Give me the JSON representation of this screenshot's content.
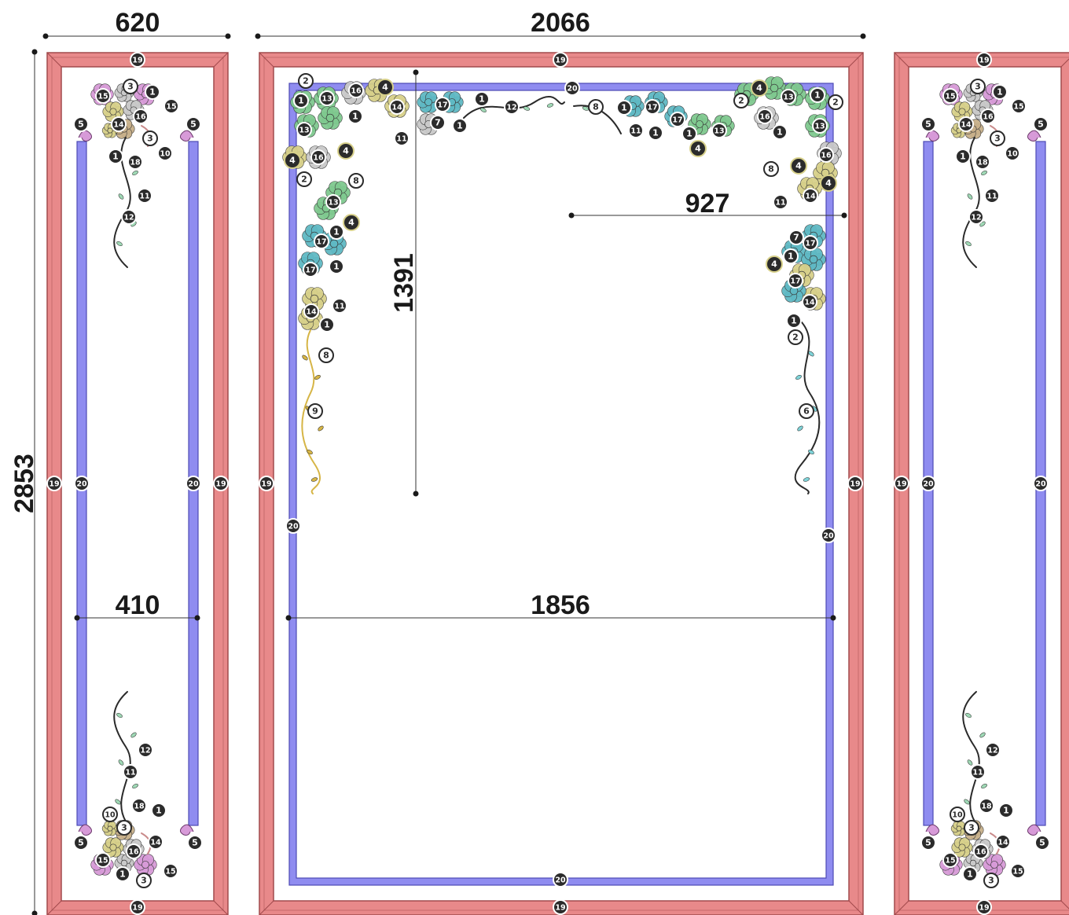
{
  "dimensions": {
    "side_panel_width": "620",
    "center_panel_width": "2066",
    "overall_height": "2853",
    "side_inner_width": "410",
    "center_inner_width": "1856",
    "corner_drop_height": "1391",
    "corner_reach_width": "927"
  },
  "part_numbers": {
    "outer_frame_molding": "19",
    "inner_frame_molding": "20"
  },
  "colors": {
    "outer_frame": "#e8898a",
    "outer_frame_dark": "#a14a4c",
    "inner_frame": "#8f8cf0",
    "inner_frame_dark": "#4d49b5",
    "badge_dark": "#2b2b2b",
    "rose_green": "#7fc98f",
    "rose_teal": "#5fb9c4",
    "rose_khaki": "#d7d08a",
    "rose_pink": "#d79ad8",
    "rose_grey": "#c9c9c9",
    "rose_tan": "#c8b08a",
    "vine_gold": "#d6b546",
    "vine_dark": "#2a2a2a"
  },
  "side_top_badges": [
    "15",
    "3",
    "1",
    "15",
    "16",
    "5",
    "14",
    "5",
    "3",
    "10",
    "1",
    "18",
    "11",
    "12"
  ],
  "side_bottom_badges": [
    "12",
    "11",
    "10",
    "18",
    "1",
    "3",
    "5",
    "16",
    "14",
    "5",
    "15",
    "1",
    "3",
    "15"
  ],
  "center_top_left_badges": [
    "2",
    "1",
    "13",
    "16",
    "4",
    "14",
    "1",
    "13",
    "4",
    "16",
    "4",
    "2",
    "8",
    "13",
    "4",
    "1",
    "17",
    "17",
    "1",
    "11",
    "14",
    "1",
    "8",
    "9",
    "11"
  ],
  "center_top_mid_badges": [
    "17",
    "1",
    "12",
    "7",
    "1",
    "8",
    "1",
    "17",
    "11",
    "1",
    "17",
    "1",
    "13",
    "4"
  ],
  "center_top_right_badges": [
    "4",
    "2",
    "13",
    "1",
    "2",
    "16",
    "13",
    "1",
    "16",
    "8",
    "4",
    "4",
    "14",
    "11",
    "7",
    "17",
    "4",
    "1",
    "17",
    "14",
    "1",
    "2",
    "6"
  ],
  "icons": {
    "rose": "rose-ornament-icon",
    "vine": "vine-scroll-icon",
    "scroll_end": "scroll-volute-icon"
  }
}
